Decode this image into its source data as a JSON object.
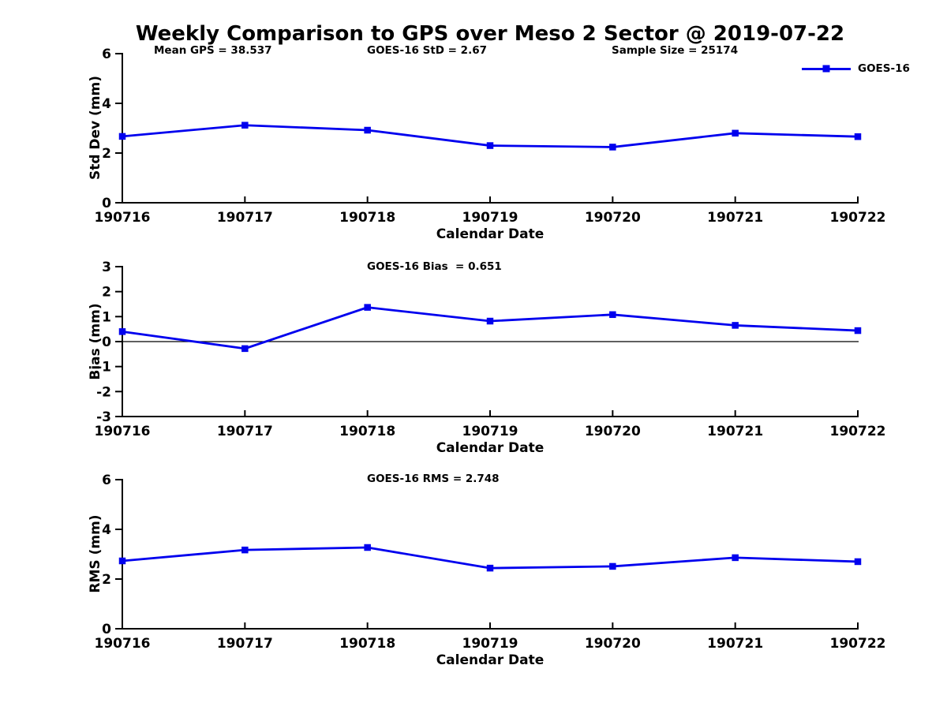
{
  "figure": {
    "title": "Weekly Comparison to GPS over Meso 2 Sector @ 2019-07-22",
    "background_color": "#ffffff",
    "axes_color": "#000000"
  },
  "legend": {
    "label": "GOES-16",
    "line_color": "#0000ee",
    "marker": "square",
    "position": "top-right"
  },
  "chart_data": {
    "type": "line",
    "categories": [
      "190716",
      "190717",
      "190718",
      "190719",
      "190720",
      "190721",
      "190722"
    ],
    "grid": false,
    "charts": [
      {
        "annotations": {
          "mean_gps": "Mean GPS = 38.537",
          "std": "GOES-16 StD = 2.67",
          "sample_size": "Sample Size = 25174"
        },
        "ylabel": "Std Dev (mm)",
        "xlabel": "Calendar Date",
        "ylim": [
          0,
          6
        ],
        "yticks": [
          0,
          2,
          4,
          6
        ],
        "zero_line": false,
        "series": [
          {
            "name": "GOES-16",
            "color": "#0000ee",
            "values": [
              2.67,
              3.12,
              2.92,
              2.3,
              2.24,
              2.8,
              2.66
            ]
          }
        ]
      },
      {
        "subtitle": "GOES-16 Bias  = 0.651",
        "ylabel": "Bias (mm)",
        "xlabel": "Calendar Date",
        "ylim": [
          -3,
          3
        ],
        "yticks": [
          -3,
          -2,
          -1,
          0,
          1,
          2,
          3
        ],
        "zero_line": true,
        "series": [
          {
            "name": "GOES-16",
            "color": "#0000ee",
            "values": [
              0.4,
              -0.28,
              1.37,
              0.82,
              1.08,
              0.65,
              0.44
            ]
          }
        ]
      },
      {
        "subtitle": "GOES-16 RMS = 2.748",
        "ylabel": "RMS (mm)",
        "xlabel": "Calendar Date",
        "ylim": [
          0,
          6
        ],
        "yticks": [
          0,
          2,
          4,
          6
        ],
        "zero_line": false,
        "series": [
          {
            "name": "GOES-16",
            "color": "#0000ee",
            "values": [
              2.73,
              3.17,
              3.27,
              2.44,
              2.51,
              2.86,
              2.7
            ]
          }
        ]
      }
    ]
  }
}
